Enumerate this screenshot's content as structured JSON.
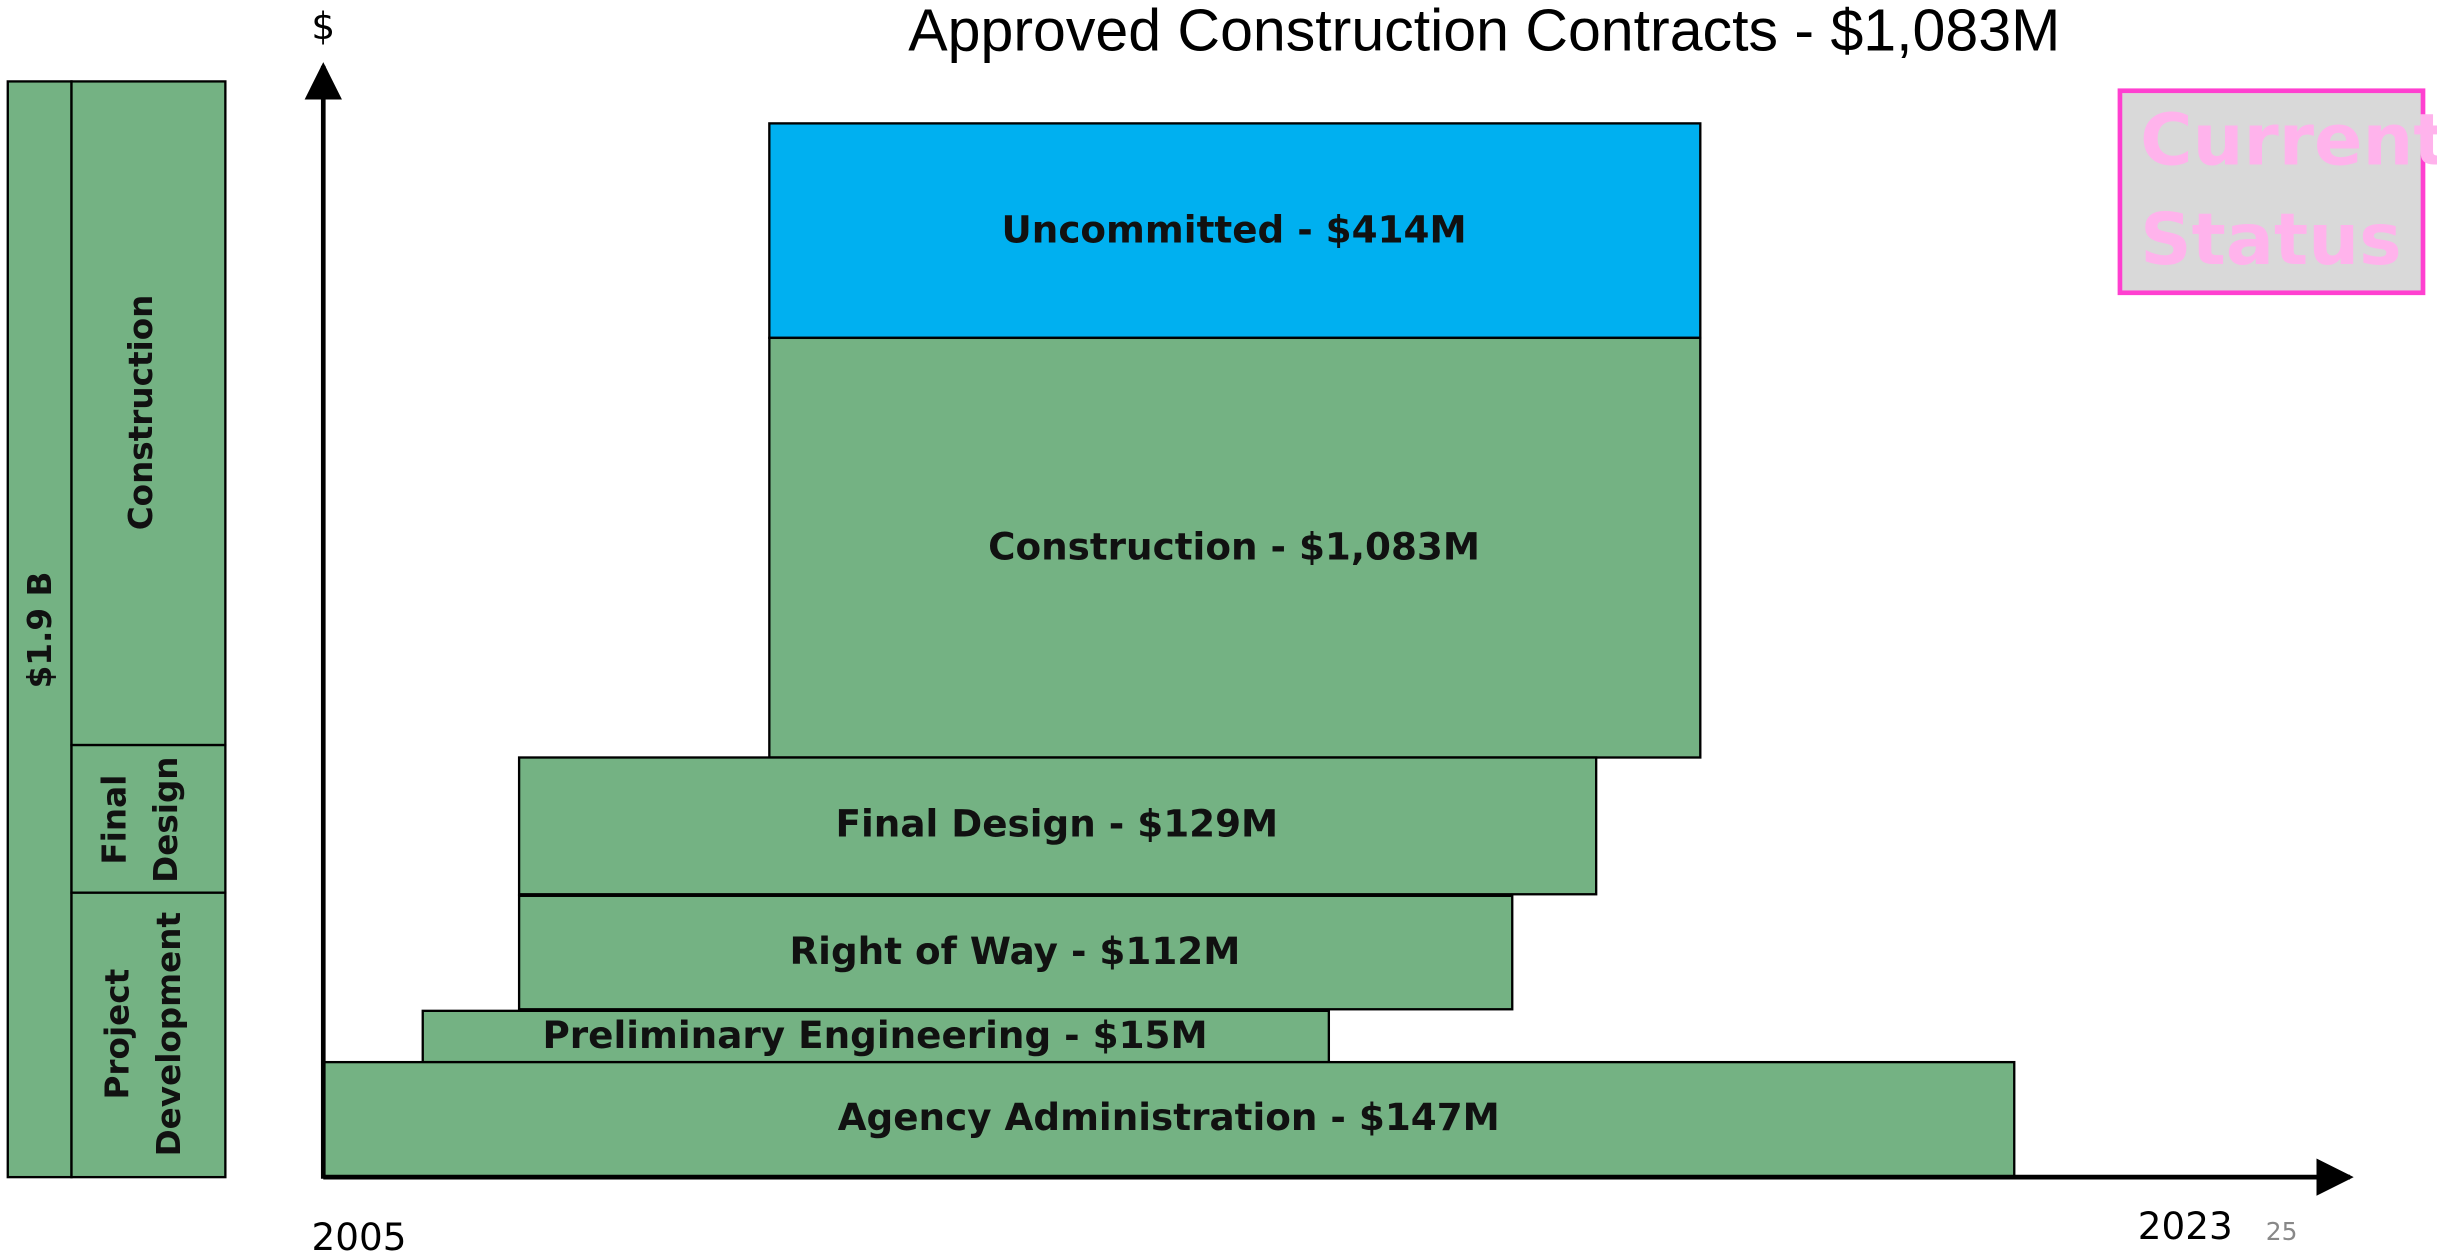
{
  "title": "Approved Construction Contracts - $1,083M",
  "axis": {
    "y_label": "$",
    "x_start": "2005",
    "x_end": "2023"
  },
  "page_number": "25",
  "side_bar": {
    "total": "$1.9 B",
    "phases": [
      {
        "lines": [
          "Construction"
        ]
      },
      {
        "lines": [
          "Final",
          "Design"
        ]
      },
      {
        "lines": [
          "Project",
          "Development"
        ]
      }
    ]
  },
  "blocks": [
    {
      "label": "Uncommitted - $414M"
    },
    {
      "label": "Construction - $1,083M"
    },
    {
      "label": "Final Design - $129M"
    },
    {
      "label": "Right of Way - $112M"
    },
    {
      "label": "Preliminary Engineering - $15M"
    },
    {
      "label": "Agency Administration - $147M"
    }
  ],
  "badge": {
    "lines": [
      "Current",
      "Status"
    ]
  }
}
